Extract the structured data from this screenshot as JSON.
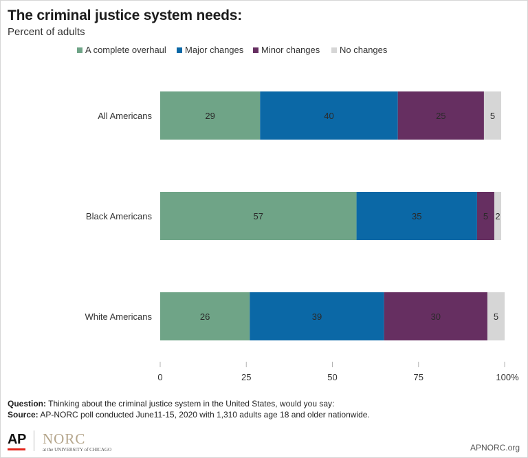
{
  "header": {
    "title": "The criminal justice system needs:",
    "subtitle": "Percent of adults"
  },
  "chart_data": {
    "type": "bar",
    "orientation": "horizontal",
    "stacked": true,
    "categories": [
      "All Americans",
      "Black Americans",
      "White Americans"
    ],
    "series": [
      {
        "name": "A complete overhaul",
        "values": [
          29,
          57,
          26
        ],
        "color": "#6fa487"
      },
      {
        "name": "Major changes",
        "values": [
          40,
          35,
          39
        ],
        "color": "#0b68a6"
      },
      {
        "name": "Minor changes",
        "values": [
          25,
          5,
          30
        ],
        "color": "#662f61"
      },
      {
        "name": "No changes",
        "values": [
          5,
          2,
          5
        ],
        "color": "#d6d6d6"
      }
    ],
    "xlim": [
      0,
      100
    ],
    "x_ticks": [
      "0",
      "25",
      "50",
      "75",
      "100%"
    ],
    "x_tick_values": [
      0,
      25,
      50,
      75,
      100
    ],
    "label_color": "#2a2a2a",
    "grid": false,
    "legend_position": "top"
  },
  "footer": {
    "question_label": "Question:",
    "question_text": "Thinking about the criminal justice system in the United States, would you say:",
    "source_label": "Source:",
    "source_text": "AP-NORC poll conducted June11-15, 2020 with 1,310 adults age 18 and older nationwide."
  },
  "logos": {
    "ap": "AP",
    "norc": "NORC",
    "norc_sub": "at the UNIVERSITY of CHICAGO",
    "url": "APNORC.org"
  }
}
